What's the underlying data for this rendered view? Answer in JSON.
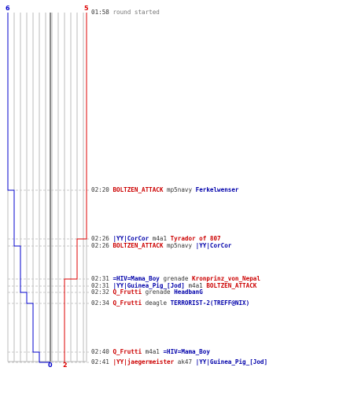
{
  "colors": {
    "team_a": "#0000cc",
    "team_b": "#dd0000",
    "grid": "#bbbbbb",
    "center": "#666666"
  },
  "counts": {
    "team_a_start": "6",
    "team_b_start": "5",
    "team_a_end": "0",
    "team_b_end": "2"
  },
  "events": [
    {
      "time": "01:58",
      "note": "round started",
      "killer": "",
      "weapon": "",
      "victim": "",
      "killer_team": "",
      "victim_team": ""
    },
    {
      "time": "02:20",
      "killer": "BOLTZEN_ATTACK",
      "killer_team": "b",
      "weapon": "mp5navy",
      "victim": "Ferkelwenser",
      "victim_team": "a"
    },
    {
      "time": "02:26",
      "killer": "|YY|CorCor",
      "killer_team": "a",
      "weapon": "m4a1",
      "victim": "Tyrador of 807",
      "victim_team": "b"
    },
    {
      "time": "02:26",
      "killer": "BOLTZEN_ATTACK",
      "killer_team": "b",
      "weapon": "mp5navy",
      "victim": "|YY|CorCor",
      "victim_team": "a"
    },
    {
      "time": "02:31",
      "killer": "=HIV=Mama_Boy",
      "killer_team": "a",
      "weapon": "grenade",
      "victim": "Kronprinz_von_Nepal",
      "victim_team": "b"
    },
    {
      "time": "02:31",
      "killer": "|YY|Guinea_Pig_[Jod]",
      "killer_team": "a",
      "weapon": "m4a1",
      "victim": "BOLTZEN_ATTACK",
      "victim_team": "b"
    },
    {
      "time": "02:32",
      "killer": "Q_Frutti",
      "killer_team": "b",
      "weapon": "grenade",
      "victim": "HeadbanG",
      "victim_team": "a"
    },
    {
      "time": "02:34",
      "killer": "Q_Frutti",
      "killer_team": "b",
      "weapon": "deagle",
      "victim": "TERRORIST-2(TREFF@NIX)",
      "victim_team": "a"
    },
    {
      "time": "02:40",
      "killer": "Q_Frutti",
      "killer_team": "b",
      "weapon": "m4a1",
      "victim": "=HIV=Mama_Boy",
      "victim_team": "a"
    },
    {
      "time": "02:41",
      "killer": "|YY|jaegermeister",
      "killer_team": "b",
      "weapon": "ak47",
      "victim": "|YY|Guinea_Pig_[Jod]",
      "victim_team": "a"
    }
  ]
}
